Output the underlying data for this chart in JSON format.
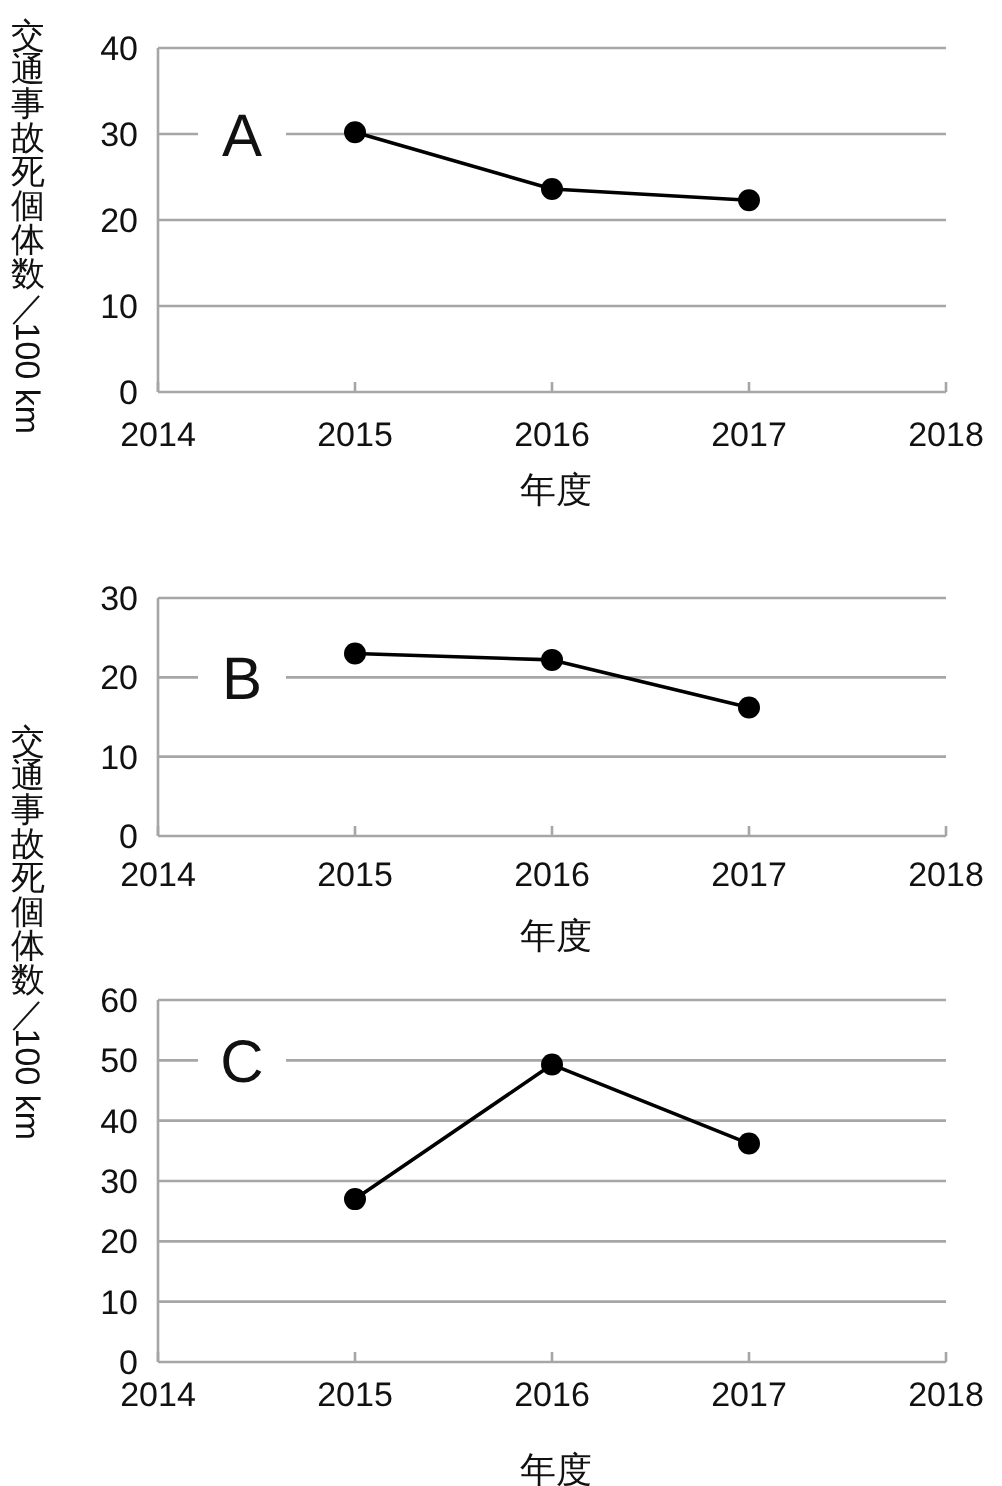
{
  "chart_data": [
    {
      "type": "line",
      "title": "A",
      "x": [
        2015,
        2016,
        2017
      ],
      "series": [
        {
          "color": "#000000",
          "values": [
            30.2,
            23.6,
            22.3
          ]
        }
      ],
      "xlim": [
        2014,
        2018
      ],
      "xticks": [
        2014,
        2015,
        2016,
        2017,
        2018
      ],
      "ylim": [
        0,
        40
      ],
      "yticks": [
        0,
        10,
        20,
        30,
        40
      ],
      "xlabel": "年度",
      "ylabel": "交通事故死個体数／100 km",
      "grid": "y",
      "marker": "circle",
      "line_style": "solid",
      "legend": false
    },
    {
      "type": "line",
      "title": "B",
      "x": [
        2015,
        2016,
        2017
      ],
      "series": [
        {
          "color": "#000000",
          "values": [
            23.0,
            22.2,
            16.2
          ]
        }
      ],
      "xlim": [
        2014,
        2018
      ],
      "xticks": [
        2014,
        2015,
        2016,
        2017,
        2018
      ],
      "ylim": [
        0,
        30
      ],
      "yticks": [
        0,
        10,
        20,
        30
      ],
      "xlabel": "年度",
      "grid": "y",
      "marker": "circle",
      "line_style": "solid",
      "legend": false
    },
    {
      "type": "line",
      "title": "C",
      "x": [
        2015,
        2016,
        2017
      ],
      "series": [
        {
          "color": "#000000",
          "values": [
            27.0,
            49.3,
            36.2
          ]
        }
      ],
      "xlim": [
        2014,
        2018
      ],
      "xticks": [
        2014,
        2015,
        2016,
        2017,
        2018
      ],
      "ylim": [
        0,
        60
      ],
      "yticks": [
        0,
        10,
        20,
        30,
        40,
        50,
        60
      ],
      "xlabel": "年度",
      "ylabel": "交通事故死個体数／100 km",
      "grid": "y",
      "marker": "circle",
      "line_style": "solid",
      "legend": false
    }
  ]
}
